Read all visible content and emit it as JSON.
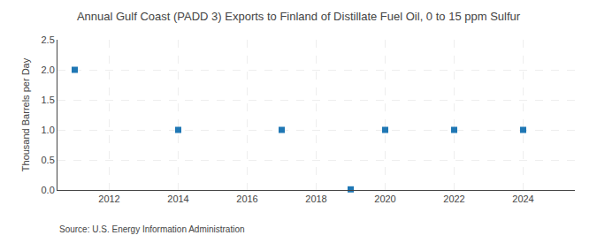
{
  "chart_data": {
    "type": "scatter",
    "title": "Annual Gulf Coast (PADD 3) Exports to Finland of Distillate Fuel Oil, 0 to 15 ppm Sulfur",
    "ylabel": "Thousand Barrels per Day",
    "annotations": [
      "Source: U.S. Energy Information Administration"
    ],
    "x": [
      2011,
      2014,
      2017,
      2019,
      2020,
      2022,
      2024
    ],
    "values": [
      2.0,
      1.0,
      1.0,
      0.01,
      1.0,
      1.0,
      1.0
    ],
    "marker": "square",
    "xlim": [
      2010.5,
      2025.5
    ],
    "xticks": [
      2012,
      2014,
      2016,
      2018,
      2020,
      2022,
      2024
    ],
    "ylim": [
      0.0,
      2.5
    ],
    "yticks": [
      {
        "value": 0.0,
        "label": "0.0"
      },
      0.5,
      {
        "value": 1.0,
        "label": "1.0"
      },
      1.5,
      {
        "value": 2.0,
        "label": "2.0"
      },
      2.5
    ],
    "grid": true
  }
}
